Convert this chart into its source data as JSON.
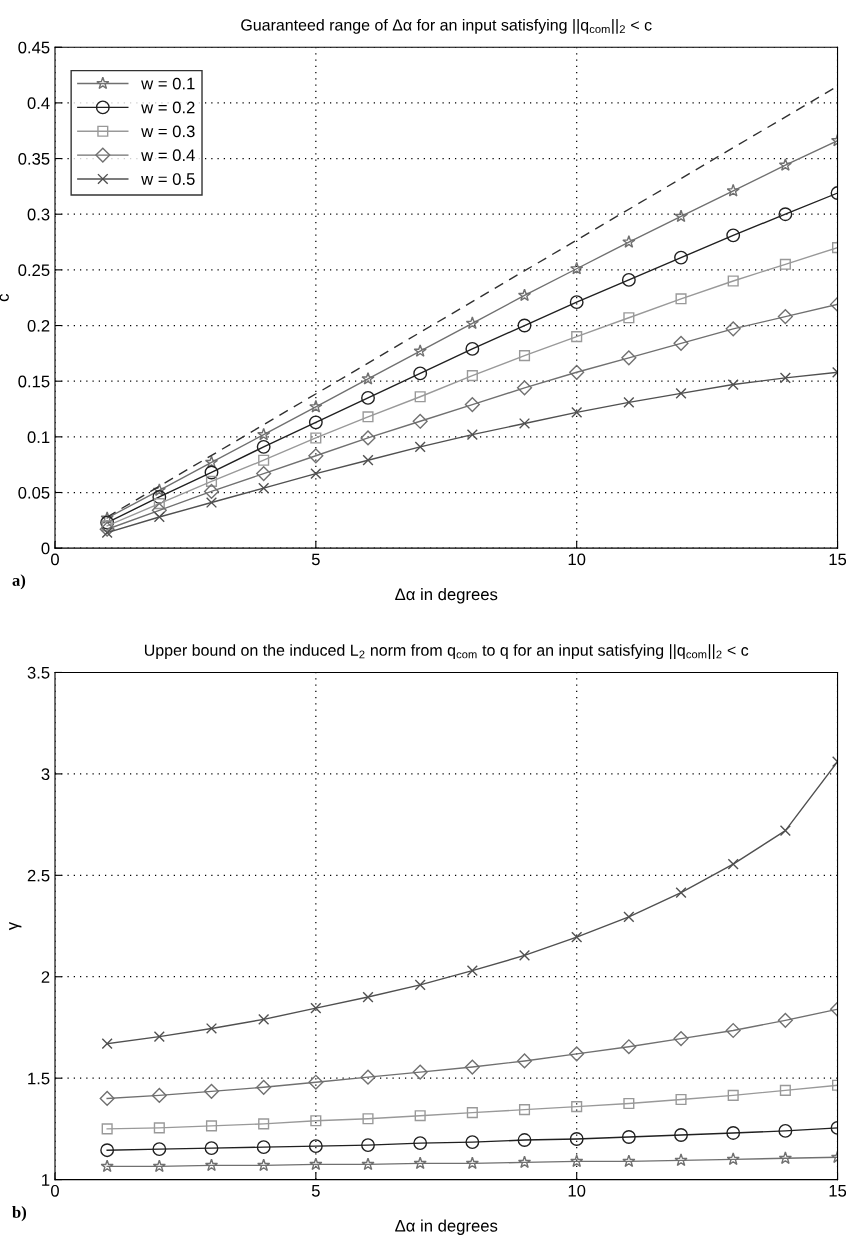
{
  "chart_data": [
    {
      "type": "line",
      "title": "Guaranteed range of Δα for an input satisfying ||q$_{com}$||$_{2}$ < c",
      "xlabel": "Δα in degrees",
      "ylabel": "c",
      "x": [
        1,
        2,
        3,
        4,
        5,
        6,
        7,
        8,
        9,
        10,
        11,
        12,
        13,
        14,
        15
      ],
      "xlim": [
        0,
        15
      ],
      "xticks": [
        0,
        5,
        10,
        15
      ],
      "ylim": [
        0,
        0.45
      ],
      "yticks": [
        0,
        0.05,
        0.1,
        0.15,
        0.2,
        0.25,
        0.3,
        0.35,
        0.4,
        0.45
      ],
      "grid": true,
      "legend": "top left",
      "annotations": [
        "a)"
      ],
      "series": [
        {
          "name": "w = 0.1",
          "color": "#707070",
          "marker": "star",
          "values": [
            0.027,
            0.052,
            0.077,
            0.102,
            0.127,
            0.152,
            0.177,
            0.202,
            0.227,
            0.251,
            0.275,
            0.298,
            0.321,
            0.344,
            0.366
          ]
        },
        {
          "name": "w = 0.2",
          "color": "#202020",
          "marker": "circle",
          "values": [
            0.023,
            0.046,
            0.068,
            0.091,
            0.113,
            0.135,
            0.157,
            0.179,
            0.2,
            0.221,
            0.241,
            0.261,
            0.281,
            0.3,
            0.319
          ]
        },
        {
          "name": "w = 0.3",
          "color": "#999999",
          "marker": "square",
          "values": [
            0.02,
            0.04,
            0.06,
            0.079,
            0.099,
            0.118,
            0.136,
            0.155,
            0.173,
            0.19,
            0.207,
            0.224,
            0.24,
            0.255,
            0.27
          ]
        },
        {
          "name": "w = 0.4",
          "color": "#707070",
          "marker": "diamond",
          "values": [
            0.017,
            0.034,
            0.051,
            0.067,
            0.083,
            0.099,
            0.114,
            0.129,
            0.144,
            0.158,
            0.171,
            0.184,
            0.197,
            0.208,
            0.219
          ]
        },
        {
          "name": "w = 0.5",
          "color": "#505050",
          "marker": "cross",
          "values": [
            0.014,
            0.028,
            0.041,
            0.054,
            0.067,
            0.079,
            0.091,
            0.102,
            0.112,
            0.122,
            0.131,
            0.139,
            0.147,
            0.153,
            0.158
          ]
        },
        {
          "color": "#303030",
          "marker": "none",
          "line_style": "dashed",
          "x": [
            1,
            15
          ],
          "values": [
            0.028,
            0.415
          ]
        }
      ]
    },
    {
      "type": "line",
      "title": "Upper bound on the induced L$_{2}$ norm from q$_{com}$ to q for an input satisfying ||q$_{com}$||$_{2}$ < c",
      "xlabel": "Δα in degrees",
      "ylabel": "γ",
      "x": [
        1,
        2,
        3,
        4,
        5,
        6,
        7,
        8,
        9,
        10,
        11,
        12,
        13,
        14,
        15
      ],
      "xlim": [
        0,
        15
      ],
      "xticks": [
        0,
        5,
        10,
        15
      ],
      "ylim": [
        1,
        3.5
      ],
      "yticks": [
        1,
        1.5,
        2,
        2.5,
        3,
        3.5
      ],
      "grid": true,
      "annotations": [
        "b)"
      ],
      "series": [
        {
          "color": "#707070",
          "marker": "star",
          "values": [
            1.065,
            1.065,
            1.07,
            1.07,
            1.075,
            1.075,
            1.08,
            1.08,
            1.085,
            1.09,
            1.09,
            1.095,
            1.1,
            1.105,
            1.11
          ]
        },
        {
          "color": "#202020",
          "marker": "circle",
          "values": [
            1.145,
            1.15,
            1.155,
            1.16,
            1.165,
            1.17,
            1.18,
            1.185,
            1.195,
            1.2,
            1.21,
            1.22,
            1.23,
            1.24,
            1.255
          ]
        },
        {
          "color": "#999999",
          "marker": "square",
          "values": [
            1.25,
            1.255,
            1.265,
            1.275,
            1.29,
            1.3,
            1.315,
            1.33,
            1.345,
            1.36,
            1.375,
            1.395,
            1.415,
            1.44,
            1.465
          ]
        },
        {
          "color": "#707070",
          "marker": "diamond",
          "values": [
            1.4,
            1.415,
            1.435,
            1.455,
            1.48,
            1.505,
            1.53,
            1.555,
            1.585,
            1.62,
            1.655,
            1.695,
            1.735,
            1.785,
            1.84
          ]
        },
        {
          "color": "#505050",
          "marker": "cross",
          "values": [
            1.67,
            1.705,
            1.745,
            1.79,
            1.845,
            1.9,
            1.96,
            2.03,
            2.105,
            2.195,
            2.295,
            2.415,
            2.555,
            2.72,
            3.06
          ]
        }
      ]
    }
  ]
}
